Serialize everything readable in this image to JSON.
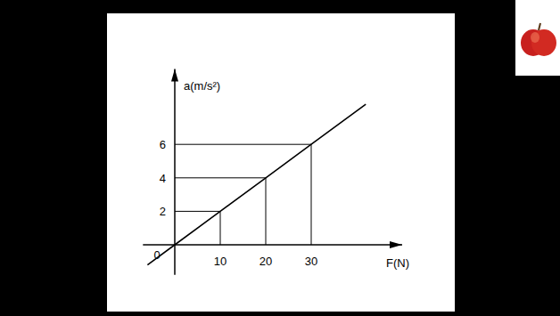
{
  "chart_data": {
    "type": "line",
    "x_label": "F(N)",
    "y_label": "a(m/s²)",
    "x": [
      -6,
      0,
      10,
      20,
      30,
      42
    ],
    "values": [
      -1.2,
      0,
      2,
      4,
      6,
      8.4
    ],
    "xlim": [
      -7,
      50
    ],
    "ylim": [
      -1.8,
      10.5
    ],
    "xticks": [
      0,
      10,
      20,
      30
    ],
    "yticks": [
      2,
      4,
      6
    ],
    "color": "#000000",
    "grid": false
  }
}
